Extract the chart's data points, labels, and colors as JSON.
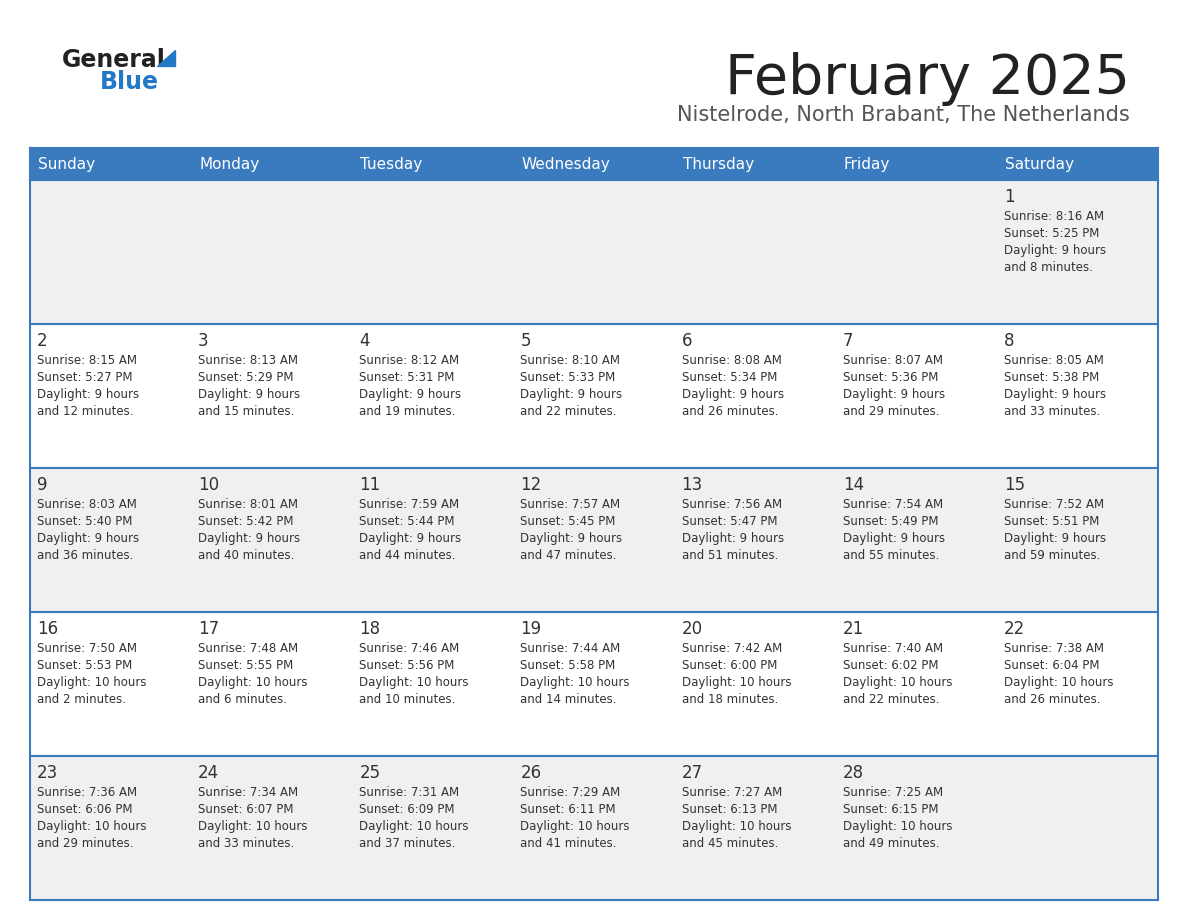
{
  "title": "February 2025",
  "subtitle": "Nistelrode, North Brabant, The Netherlands",
  "days_of_week": [
    "Sunday",
    "Monday",
    "Tuesday",
    "Wednesday",
    "Thursday",
    "Friday",
    "Saturday"
  ],
  "header_bg": "#3a7abf",
  "header_text": "#ffffff",
  "row_bg_even": "#ffffff",
  "row_bg_odd": "#f0f0f0",
  "border_color": "#3a7abf",
  "text_color": "#333333",
  "title_color": "#222222",
  "subtitle_color": "#555555",
  "logo_general_color": "#222222",
  "logo_blue_color": "#2478c8",
  "calendar": [
    [
      null,
      null,
      null,
      null,
      null,
      null,
      {
        "day": 1,
        "sunrise": "8:16 AM",
        "sunset": "5:25 PM",
        "daylight": "9 hours and 8 minutes."
      }
    ],
    [
      {
        "day": 2,
        "sunrise": "8:15 AM",
        "sunset": "5:27 PM",
        "daylight": "9 hours and 12 minutes."
      },
      {
        "day": 3,
        "sunrise": "8:13 AM",
        "sunset": "5:29 PM",
        "daylight": "9 hours and 15 minutes."
      },
      {
        "day": 4,
        "sunrise": "8:12 AM",
        "sunset": "5:31 PM",
        "daylight": "9 hours and 19 minutes."
      },
      {
        "day": 5,
        "sunrise": "8:10 AM",
        "sunset": "5:33 PM",
        "daylight": "9 hours and 22 minutes."
      },
      {
        "day": 6,
        "sunrise": "8:08 AM",
        "sunset": "5:34 PM",
        "daylight": "9 hours and 26 minutes."
      },
      {
        "day": 7,
        "sunrise": "8:07 AM",
        "sunset": "5:36 PM",
        "daylight": "9 hours and 29 minutes."
      },
      {
        "day": 8,
        "sunrise": "8:05 AM",
        "sunset": "5:38 PM",
        "daylight": "9 hours and 33 minutes."
      }
    ],
    [
      {
        "day": 9,
        "sunrise": "8:03 AM",
        "sunset": "5:40 PM",
        "daylight": "9 hours and 36 minutes."
      },
      {
        "day": 10,
        "sunrise": "8:01 AM",
        "sunset": "5:42 PM",
        "daylight": "9 hours and 40 minutes."
      },
      {
        "day": 11,
        "sunrise": "7:59 AM",
        "sunset": "5:44 PM",
        "daylight": "9 hours and 44 minutes."
      },
      {
        "day": 12,
        "sunrise": "7:57 AM",
        "sunset": "5:45 PM",
        "daylight": "9 hours and 47 minutes."
      },
      {
        "day": 13,
        "sunrise": "7:56 AM",
        "sunset": "5:47 PM",
        "daylight": "9 hours and 51 minutes."
      },
      {
        "day": 14,
        "sunrise": "7:54 AM",
        "sunset": "5:49 PM",
        "daylight": "9 hours and 55 minutes."
      },
      {
        "day": 15,
        "sunrise": "7:52 AM",
        "sunset": "5:51 PM",
        "daylight": "9 hours and 59 minutes."
      }
    ],
    [
      {
        "day": 16,
        "sunrise": "7:50 AM",
        "sunset": "5:53 PM",
        "daylight": "10 hours and 2 minutes."
      },
      {
        "day": 17,
        "sunrise": "7:48 AM",
        "sunset": "5:55 PM",
        "daylight": "10 hours and 6 minutes."
      },
      {
        "day": 18,
        "sunrise": "7:46 AM",
        "sunset": "5:56 PM",
        "daylight": "10 hours and 10 minutes."
      },
      {
        "day": 19,
        "sunrise": "7:44 AM",
        "sunset": "5:58 PM",
        "daylight": "10 hours and 14 minutes."
      },
      {
        "day": 20,
        "sunrise": "7:42 AM",
        "sunset": "6:00 PM",
        "daylight": "10 hours and 18 minutes."
      },
      {
        "day": 21,
        "sunrise": "7:40 AM",
        "sunset": "6:02 PM",
        "daylight": "10 hours and 22 minutes."
      },
      {
        "day": 22,
        "sunrise": "7:38 AM",
        "sunset": "6:04 PM",
        "daylight": "10 hours and 26 minutes."
      }
    ],
    [
      {
        "day": 23,
        "sunrise": "7:36 AM",
        "sunset": "6:06 PM",
        "daylight": "10 hours and 29 minutes."
      },
      {
        "day": 24,
        "sunrise": "7:34 AM",
        "sunset": "6:07 PM",
        "daylight": "10 hours and 33 minutes."
      },
      {
        "day": 25,
        "sunrise": "7:31 AM",
        "sunset": "6:09 PM",
        "daylight": "10 hours and 37 minutes."
      },
      {
        "day": 26,
        "sunrise": "7:29 AM",
        "sunset": "6:11 PM",
        "daylight": "10 hours and 41 minutes."
      },
      {
        "day": 27,
        "sunrise": "7:27 AM",
        "sunset": "6:13 PM",
        "daylight": "10 hours and 45 minutes."
      },
      {
        "day": 28,
        "sunrise": "7:25 AM",
        "sunset": "6:15 PM",
        "daylight": "10 hours and 49 minutes."
      },
      null
    ]
  ]
}
